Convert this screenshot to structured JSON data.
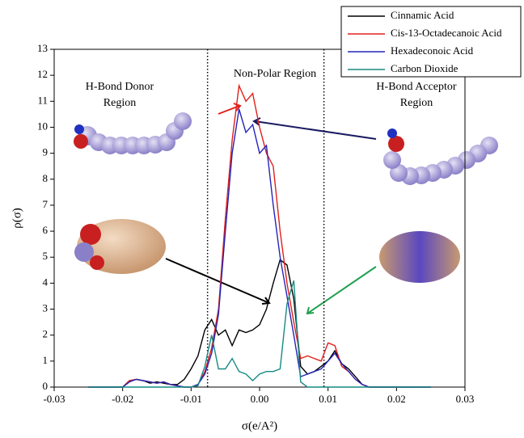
{
  "chart_data": {
    "type": "line",
    "x_label": "σ(e/A²)",
    "y_label": "ρ(σ)",
    "x": [
      -0.025,
      -0.02,
      -0.019,
      -0.018,
      -0.017,
      -0.016,
      -0.015,
      -0.014,
      -0.013,
      -0.012,
      -0.011,
      -0.01,
      -0.009,
      -0.008,
      -0.007,
      -0.006,
      -0.005,
      -0.004,
      -0.003,
      -0.002,
      -0.001,
      0,
      0.001,
      0.002,
      0.003,
      0.004,
      0.005,
      0.006,
      0.007,
      0.008,
      0.009,
      0.01,
      0.011,
      0.012,
      0.013,
      0.014,
      0.015,
      0.016,
      0.017,
      0.025
    ],
    "series": [
      {
        "name": "Cinnamic Acid",
        "color": "#000000",
        "values": [
          0,
          0,
          0.25,
          0.3,
          0.25,
          0.15,
          0.2,
          0.15,
          0.1,
          0.1,
          0.3,
          0.7,
          1.2,
          2.2,
          2.6,
          2.0,
          2.2,
          1.6,
          2.2,
          2.1,
          2.2,
          2.4,
          3.0,
          4.0,
          4.9,
          4.7,
          3.4,
          0.8,
          0.5,
          0.6,
          0.8,
          1.0,
          1.4,
          0.9,
          0.7,
          0.4,
          0.1,
          0,
          0,
          0
        ]
      },
      {
        "name": "Cis-13-Octadecanoic Acid",
        "color": "#e0201b",
        "values": [
          0,
          0,
          0.25,
          0.3,
          0.25,
          0.2,
          0.15,
          0.2,
          0.1,
          0.05,
          0,
          0,
          0.1,
          0.6,
          1.5,
          3.0,
          6.5,
          9.5,
          11.6,
          11.0,
          11.3,
          10.0,
          9.0,
          8.5,
          6.0,
          4.0,
          2.5,
          1.1,
          1.2,
          1.1,
          1.0,
          1.7,
          1.6,
          0.8,
          0.6,
          0.3,
          0.1,
          0,
          0,
          0
        ]
      },
      {
        "name": "Hexadeconoic Acid",
        "color": "#2424b8",
        "values": [
          0,
          0,
          0.2,
          0.3,
          0.25,
          0.2,
          0.15,
          0.2,
          0.1,
          0.05,
          0,
          0,
          0.1,
          0.5,
          1.3,
          2.8,
          6.0,
          9.0,
          10.7,
          9.8,
          10.1,
          9.0,
          9.3,
          7.0,
          5.0,
          3.5,
          2.0,
          0.4,
          0.5,
          0.6,
          0.7,
          1.0,
          1.3,
          0.9,
          0.6,
          0.3,
          0.1,
          0,
          0,
          0
        ]
      },
      {
        "name": "Carbon Dioxide",
        "color": "#178a84",
        "values": [
          0,
          0,
          0,
          0,
          0,
          0,
          0,
          0,
          0,
          0,
          0,
          0,
          0.05,
          0.8,
          2.0,
          0.7,
          0.7,
          1.1,
          0.6,
          0.5,
          0.25,
          0.5,
          0.6,
          0.6,
          0.7,
          3.2,
          4.1,
          0.2,
          0,
          0,
          0,
          0,
          0,
          0,
          0,
          0,
          0,
          0,
          0,
          0
        ]
      }
    ],
    "xlim": [
      -0.03,
      0.03
    ],
    "xticks": [
      -0.03,
      -0.02,
      -0.01,
      {
        "value": 0,
        "label": "0.00"
      },
      0.01,
      0.02,
      0.03
    ],
    "ylim": [
      0,
      13
    ],
    "yticks": [
      0,
      1,
      2,
      3,
      4,
      5,
      6,
      7,
      8,
      9,
      10,
      11,
      12,
      13
    ],
    "vlines": [
      -0.0076,
      0.0094
    ],
    "annotations": [
      [
        "H-Bond Donor",
        "Region"
      ],
      [
        "Non-Polar Region"
      ],
      [
        "H-Bond Acceptor",
        "Region"
      ]
    ],
    "legend": "upper right"
  }
}
